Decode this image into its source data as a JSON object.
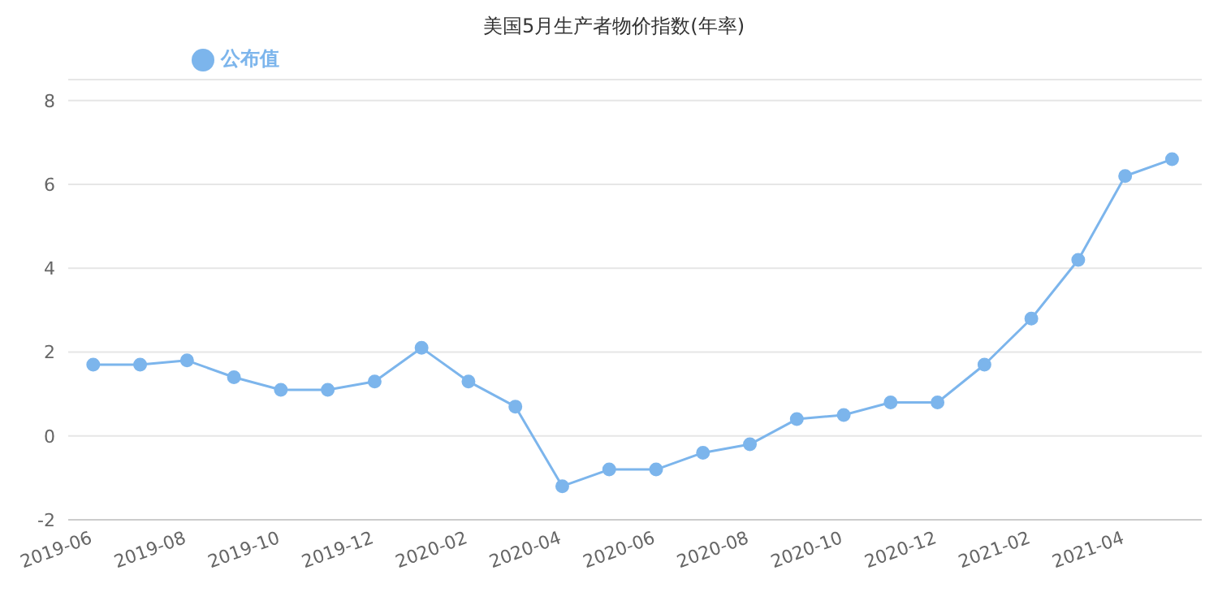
{
  "chart_data": {
    "type": "line",
    "title": "美国5月生产者物价指数(年率)",
    "x": [
      "2019-06",
      "2019-07",
      "2019-08",
      "2019-09",
      "2019-10",
      "2019-11",
      "2019-12",
      "2020-01",
      "2020-02",
      "2020-03",
      "2020-04",
      "2020-05",
      "2020-06",
      "2020-07",
      "2020-08",
      "2020-09",
      "2020-10",
      "2020-11",
      "2020-12",
      "2021-01",
      "2021-02",
      "2021-03",
      "2021-04",
      "2021-05"
    ],
    "series": [
      {
        "name": "公布值",
        "color": "#7cb5ec",
        "values": [
          1.7,
          1.7,
          1.8,
          1.4,
          1.1,
          1.1,
          1.3,
          2.1,
          1.3,
          0.7,
          -1.2,
          -0.8,
          -0.8,
          -0.4,
          -0.2,
          0.4,
          0.5,
          0.8,
          0.8,
          1.7,
          2.8,
          4.2,
          6.2,
          6.6
        ]
      }
    ],
    "xlim": [
      "2019-05-15",
      "2021-05-20"
    ],
    "xticks": [
      "2019-06",
      "2019-08",
      "2019-10",
      "2019-12",
      "2020-02",
      "2020-04",
      "2020-06",
      "2020-08",
      "2020-10",
      "2020-12",
      "2021-02",
      "2021-04"
    ],
    "ylim": [
      -2,
      8.5
    ],
    "yticks": [
      -2,
      0,
      2,
      4,
      6,
      8
    ],
    "grid": "y",
    "legend": "top left",
    "marker": "circle",
    "line_style": "solid"
  }
}
